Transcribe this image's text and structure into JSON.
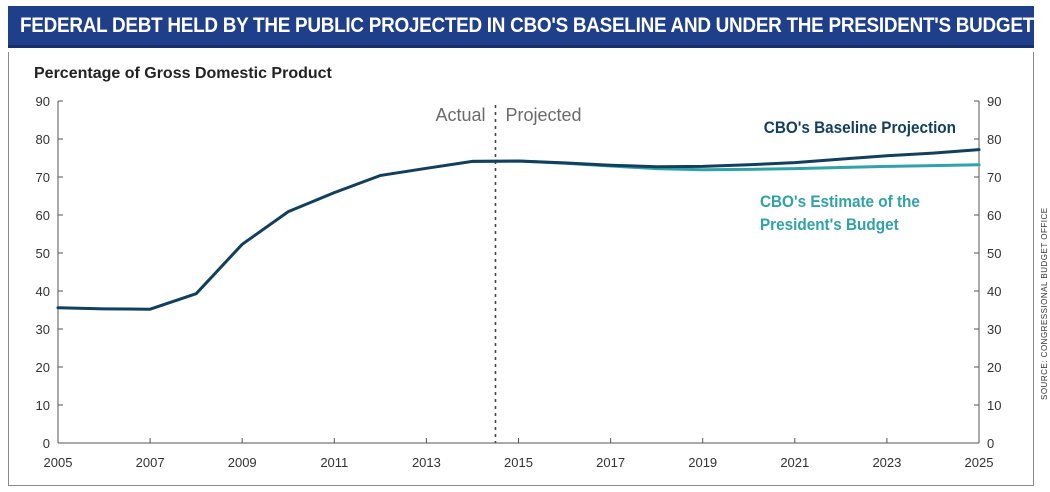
{
  "chart_data": {
    "type": "line",
    "title": "FEDERAL DEBT HELD BY THE PUBLIC PROJECTED IN CBO'S BASELINE AND UNDER THE PRESIDENT'S BUDGET",
    "ylabel": "Percentage of Gross Domestic Product",
    "xlabel": "",
    "ylim": [
      0,
      90
    ],
    "xlim": [
      2005,
      2025
    ],
    "y_ticks": [
      0,
      10,
      20,
      30,
      40,
      50,
      60,
      70,
      80,
      90
    ],
    "x_ticks": [
      2005,
      2007,
      2009,
      2011,
      2013,
      2015,
      2017,
      2019,
      2021,
      2023,
      2025
    ],
    "divider_x": 2014.5,
    "divider_labels": {
      "left": "Actual",
      "right": "Projected"
    },
    "series": [
      {
        "name": "CBO's Baseline Projection",
        "color": "#123f5e",
        "x": [
          2005,
          2006,
          2007,
          2008,
          2009,
          2010,
          2011,
          2012,
          2013,
          2014,
          2015,
          2016,
          2017,
          2018,
          2019,
          2020,
          2021,
          2022,
          2023,
          2024,
          2025
        ],
        "values": [
          35.6,
          35.3,
          35.2,
          39.3,
          52.3,
          60.9,
          65.9,
          70.4,
          72.3,
          74.1,
          74.2,
          73.7,
          73.1,
          72.7,
          72.8,
          73.2,
          73.8,
          74.7,
          75.6,
          76.3,
          77.2
        ]
      },
      {
        "name": "CBO's Estimate of the President's Budget",
        "label_lines": [
          "CBO's Estimate of the",
          "President's Budget"
        ],
        "color": "#2fa3a8",
        "x": [
          2014,
          2015,
          2016,
          2017,
          2018,
          2019,
          2020,
          2021,
          2022,
          2023,
          2024,
          2025
        ],
        "values": [
          74.1,
          74.2,
          73.6,
          72.9,
          72.2,
          71.9,
          72.0,
          72.2,
          72.5,
          72.8,
          73.0,
          73.2
        ]
      }
    ]
  },
  "source_note": "SOURCE: CONGRESSIONAL BUDGET OFFICE"
}
